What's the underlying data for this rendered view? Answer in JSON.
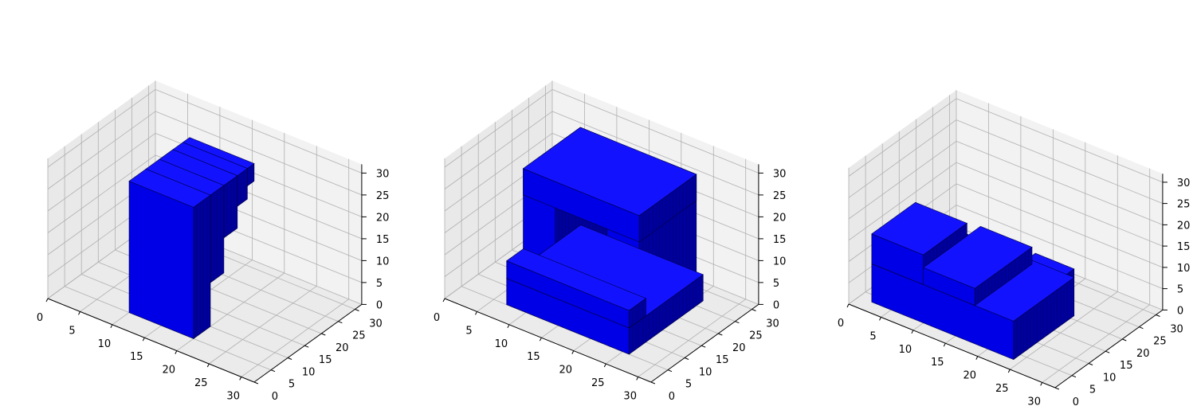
{
  "figure": {
    "panels": 3
  },
  "colors": {
    "voxel_top": "#1212ff",
    "voxel_front": "#0000e6",
    "voxel_side": "#00009c",
    "voxel_edge": "#000040",
    "pane_back": "#f2f2f2",
    "pane_left": "#e9e9e9",
    "pane_floor": "#ebebeb",
    "grid": "#b0b0b0",
    "axis": "#000000"
  },
  "chart_data": [
    {
      "type": "voxel",
      "title": "",
      "xlim": [
        0,
        32
      ],
      "ylim": [
        0,
        32
      ],
      "zlim": [
        0,
        32
      ],
      "x_ticks": [
        0,
        5,
        10,
        15,
        20,
        25,
        30
      ],
      "y_ticks": [
        0,
        5,
        10,
        15,
        20,
        25,
        30
      ],
      "z_ticks": [
        0,
        5,
        10,
        15,
        20,
        25,
        30
      ],
      "grid": true,
      "shape": "tall slab with a concave curved back face",
      "boxes": [
        {
          "x": [
            10,
            20
          ],
          "y": [
            5,
            10
          ],
          "z": [
            0,
            30
          ]
        },
        {
          "x": [
            10,
            20
          ],
          "y": [
            10,
            14
          ],
          "z": [
            10,
            30
          ]
        },
        {
          "x": [
            10,
            20
          ],
          "y": [
            14,
            18
          ],
          "z": [
            18,
            30
          ]
        },
        {
          "x": [
            10,
            20
          ],
          "y": [
            18,
            21
          ],
          "z": [
            23,
            30
          ]
        },
        {
          "x": [
            10,
            20
          ],
          "y": [
            21,
            23
          ],
          "z": [
            26,
            30
          ]
        }
      ]
    },
    {
      "type": "voxel",
      "title": "",
      "xlim": [
        0,
        32
      ],
      "ylim": [
        0,
        32
      ],
      "zlim": [
        0,
        32
      ],
      "x_ticks": [
        0,
        5,
        10,
        15,
        20,
        25,
        30
      ],
      "y_ticks": [
        0,
        5,
        10,
        15,
        20,
        25,
        30
      ],
      "z_ticks": [
        0,
        5,
        10,
        15,
        20,
        25,
        30
      ],
      "grid": true,
      "shape": "rectangular frame with central opening on a base plinth",
      "boxes": [
        {
          "x": [
            7,
            26
          ],
          "y": [
            5,
            27
          ],
          "z": [
            0,
            6
          ]
        },
        {
          "x": [
            7,
            26
          ],
          "y": [
            5,
            10
          ],
          "z": [
            6,
            10
          ]
        },
        {
          "x": [
            8,
            13
          ],
          "y": [
            8,
            25
          ],
          "z": [
            6,
            30
          ]
        },
        {
          "x": [
            21,
            26
          ],
          "y": [
            8,
            25
          ],
          "z": [
            6,
            30
          ]
        },
        {
          "x": [
            8,
            26
          ],
          "y": [
            8,
            25
          ],
          "z": [
            24,
            30
          ]
        }
      ]
    },
    {
      "type": "voxel",
      "title": "",
      "xlim": [
        0,
        32
      ],
      "ylim": [
        0,
        32
      ],
      "zlim": [
        0,
        32
      ],
      "x_ticks": [
        0,
        5,
        10,
        15,
        20,
        25,
        30
      ],
      "y_ticks": [
        0,
        5,
        10,
        15,
        20,
        25,
        30
      ],
      "z_ticks": [
        0,
        5,
        10,
        15,
        20,
        25,
        30
      ],
      "grid": true,
      "shape": "low box with a rough stepped top surface",
      "boxes": [
        {
          "x": [
            2,
            24
          ],
          "y": [
            3,
            21
          ],
          "z": [
            0,
            9
          ]
        },
        {
          "x": [
            2,
            10
          ],
          "y": [
            3,
            16
          ],
          "z": [
            9,
            16
          ]
        },
        {
          "x": [
            10,
            18
          ],
          "y": [
            3,
            20
          ],
          "z": [
            9,
            13
          ]
        },
        {
          "x": [
            18,
            24
          ],
          "y": [
            6,
            21
          ],
          "z": [
            9,
            11
          ]
        }
      ]
    }
  ]
}
